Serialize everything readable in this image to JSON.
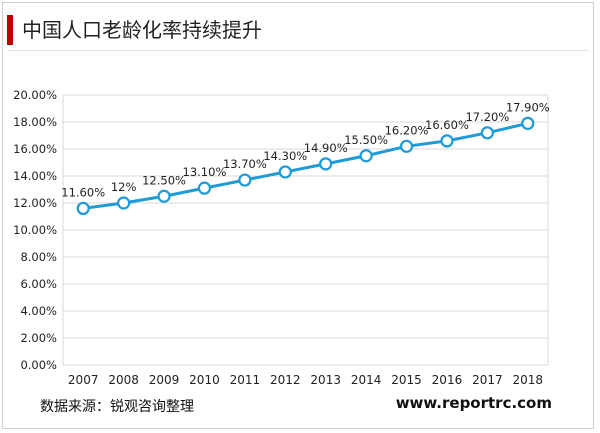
{
  "title": "中国人口老龄化率持续提升",
  "source": "数据来源：锐观咨询整理",
  "website": "www.reportrc.com",
  "colors": {
    "accent": "#c00000",
    "line": "#1f9bd7",
    "grid": "#d9d9d9"
  },
  "chart_data": {
    "type": "line",
    "title": "",
    "xlabel": "",
    "ylabel": "",
    "categories": [
      "2007",
      "2008",
      "2009",
      "2010",
      "2011",
      "2012",
      "2013",
      "2014",
      "2015",
      "2016",
      "2017",
      "2018"
    ],
    "series": [
      {
        "values": [
          11.6,
          12,
          12.5,
          13.1,
          13.7,
          14.3,
          14.9,
          15.5,
          16.2,
          16.6,
          17.2,
          17.9
        ],
        "labels": [
          "11.60%",
          "12%",
          "12.50%",
          "13.10%",
          "13.70%",
          "14.30%",
          "14.90%",
          "15.50%",
          "16.20%",
          "16.60%",
          "17.20%",
          "17.90%"
        ]
      }
    ],
    "ylim": [
      0,
      20
    ],
    "yticks": [
      "0.00%",
      "2.00%",
      "4.00%",
      "6.00%",
      "8.00%",
      "10.00%",
      "12.00%",
      "14.00%",
      "16.00%",
      "18.00%",
      "20.00%"
    ],
    "grid": true,
    "legend": "none"
  }
}
